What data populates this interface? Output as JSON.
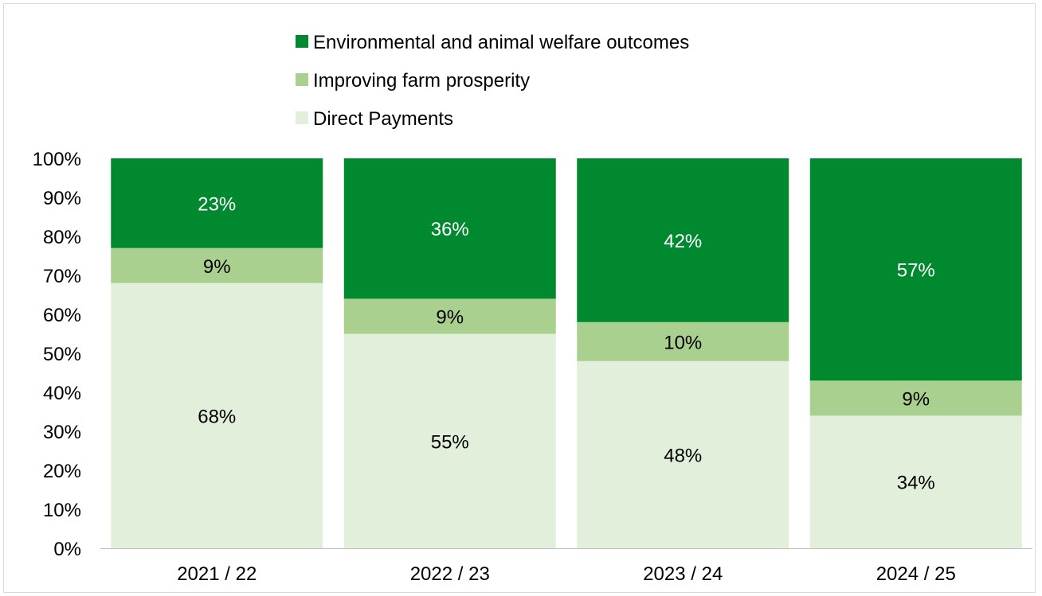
{
  "chart_data": {
    "type": "bar",
    "stacked": true,
    "categories": [
      "2021 / 22",
      "2022 / 23",
      "2023 / 24",
      "2024 / 25"
    ],
    "series": [
      {
        "name": "Direct Payments",
        "values": [
          68,
          55,
          48,
          34
        ],
        "labels": [
          "68%",
          "55%",
          "48%",
          "34%"
        ],
        "color": "#e2efda",
        "label_color": "#000000"
      },
      {
        "name": "Improving farm prosperity",
        "values": [
          9,
          9,
          10,
          9
        ],
        "labels": [
          "9%",
          "9%",
          "10%",
          "9%"
        ],
        "color": "#a9d08e",
        "label_color": "#000000"
      },
      {
        "name": "Environmental and animal welfare outcomes",
        "values": [
          23,
          36,
          42,
          57
        ],
        "labels": [
          "23%",
          "36%",
          "42%",
          "57%"
        ],
        "color": "#00892f",
        "label_color": "#ffffff"
      }
    ],
    "yticks": [
      "0%",
      "10%",
      "20%",
      "30%",
      "40%",
      "50%",
      "60%",
      "70%",
      "80%",
      "90%",
      "100%"
    ],
    "ylim": [
      0,
      100
    ],
    "legend_position": "top",
    "legend_order": [
      "Environmental and animal welfare outcomes",
      "Improving farm prosperity",
      "Direct Payments"
    ],
    "grid": false,
    "title": "",
    "xlabel": "",
    "ylabel": ""
  }
}
